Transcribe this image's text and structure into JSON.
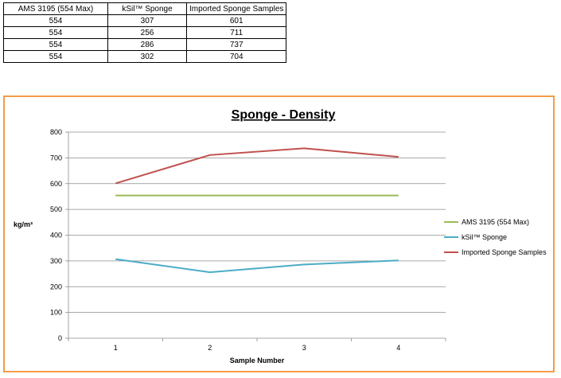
{
  "table": {
    "headers": [
      "AMS 3195 (554 Max)",
      "kSil™ Sponge",
      "Imported Sponge Samples"
    ],
    "rows": [
      [
        "554",
        "307",
        "601"
      ],
      [
        "554",
        "256",
        "711"
      ],
      [
        "554",
        "286",
        "737"
      ],
      [
        "554",
        "302",
        "704"
      ]
    ]
  },
  "chart_data": {
    "type": "line",
    "title": "Sponge - Density",
    "xlabel": "Sample Number",
    "ylabel": "kg/m³",
    "x": [
      1,
      2,
      3,
      4
    ],
    "ylim": [
      0,
      800
    ],
    "yticks": [
      0,
      100,
      200,
      300,
      400,
      500,
      600,
      700,
      800
    ],
    "grid": true,
    "legend_position": "right",
    "series": [
      {
        "name": "AMS 3195 (554 Max)",
        "values": [
          554,
          554,
          554,
          554
        ],
        "color": "#9bbb59"
      },
      {
        "name": "kSil™ Sponge",
        "values": [
          307,
          256,
          286,
          302
        ],
        "color": "#4bacc6"
      },
      {
        "name": "Imported Sponge Samples",
        "values": [
          601,
          711,
          737,
          704
        ],
        "color": "#c0504d"
      }
    ]
  }
}
